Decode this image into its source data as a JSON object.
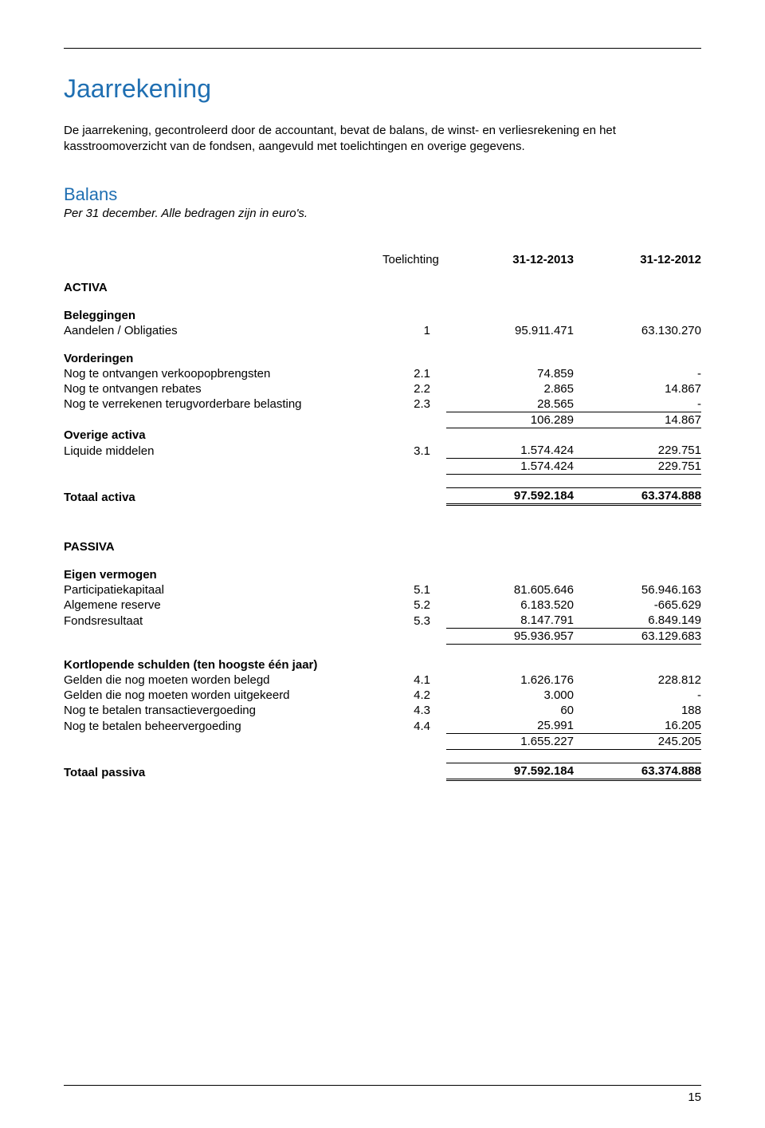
{
  "title": "Jaarrekening",
  "intro": "De jaarrekening, gecontroleerd door de accountant, bevat de balans, de winst- en verliesrekening en het kasstroomoverzicht van de fondsen, aangevuld met toelichtingen en overige gegevens.",
  "balans": {
    "heading": "Balans",
    "subtitle": "Per 31 december. Alle bedragen zijn in euro's."
  },
  "columns": {
    "note": "Toelichting",
    "c1": "31-12-2013",
    "c2": "31-12-2012"
  },
  "activa": {
    "heading": "ACTIVA",
    "beleggingen": {
      "heading": "Beleggingen",
      "row": {
        "label": "Aandelen / Obligaties",
        "note": "1",
        "v1": "95.911.471",
        "v2": "63.130.270"
      }
    },
    "vorderingen": {
      "heading": "Vorderingen",
      "rows": [
        {
          "label": "Nog te ontvangen verkoopopbrengsten",
          "note": "2.1",
          "v1": "74.859",
          "v2": "-"
        },
        {
          "label": "Nog te ontvangen rebates",
          "note": "2.2",
          "v1": "2.865",
          "v2": "14.867"
        },
        {
          "label": "Nog te verrekenen terugvorderbare belasting",
          "note": "2.3",
          "v1": "28.565",
          "v2": "-"
        }
      ],
      "subtotal": {
        "v1": "106.289",
        "v2": "14.867"
      }
    },
    "overige": {
      "heading": "Overige activa",
      "row": {
        "label": "Liquide middelen",
        "note": "3.1",
        "v1": "1.574.424",
        "v2": "229.751"
      },
      "subtotal": {
        "v1": "1.574.424",
        "v2": "229.751"
      }
    },
    "totaal": {
      "label": "Totaal activa",
      "v1": "97.592.184",
      "v2": "63.374.888"
    }
  },
  "passiva": {
    "heading": "PASSIVA",
    "eigen": {
      "heading": "Eigen vermogen",
      "rows": [
        {
          "label": "Participatiekapitaal",
          "note": "5.1",
          "v1": "81.605.646",
          "v2": "56.946.163"
        },
        {
          "label": "Algemene reserve",
          "note": "5.2",
          "v1": "6.183.520",
          "v2": "-665.629"
        },
        {
          "label": "Fondsresultaat",
          "note": "5.3",
          "v1": "8.147.791",
          "v2": "6.849.149"
        }
      ],
      "subtotal": {
        "v1": "95.936.957",
        "v2": "63.129.683"
      }
    },
    "kort": {
      "heading": "Kortlopende schulden (ten hoogste één jaar)",
      "rows": [
        {
          "label": "Gelden die nog moeten worden belegd",
          "note": "4.1",
          "v1": "1.626.176",
          "v2": "228.812"
        },
        {
          "label": "Gelden die nog moeten worden uitgekeerd",
          "note": "4.2",
          "v1": "3.000",
          "v2": "-"
        },
        {
          "label": "Nog te betalen transactievergoeding",
          "note": "4.3",
          "v1": "60",
          "v2": "188"
        },
        {
          "label": "Nog te betalen beheervergoeding",
          "note": "4.4",
          "v1": "25.991",
          "v2": "16.205"
        }
      ],
      "subtotal": {
        "v1": "1.655.227",
        "v2": "245.205"
      }
    },
    "totaal": {
      "label": "Totaal passiva",
      "v1": "97.592.184",
      "v2": "63.374.888"
    }
  },
  "page_number": "15",
  "colors": {
    "heading_blue": "#1f6fb2",
    "text": "#000000",
    "background": "#ffffff",
    "rule": "#000000"
  },
  "typography": {
    "base_fontsize_pt": 11,
    "title_fontsize_pt": 24,
    "section_fontsize_pt": 16,
    "font_family": "Arial"
  }
}
